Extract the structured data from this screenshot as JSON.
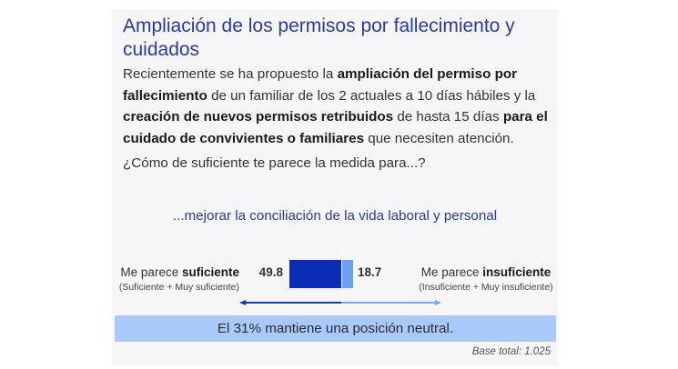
{
  "card": {
    "title": "Ampliación de los permisos por fallecimiento y cuidados",
    "intro": [
      {
        "text": "Recientemente se ha propuesto la ",
        "bold": false
      },
      {
        "text": "ampliación del permiso por fallecimiento",
        "bold": true
      },
      {
        "text": " de un familiar de los 2 actuales a 10 días hábiles y la ",
        "bold": false
      },
      {
        "text": "creación de nuevos permisos retribuidos",
        "bold": true
      },
      {
        "text": " de hasta 15 días ",
        "bold": false
      },
      {
        "text": "para el cuidado de convivientes o familiares",
        "bold": true
      },
      {
        "text": " que necesiten atención.",
        "bold": false
      }
    ],
    "question": "¿Cómo de suficiente te parece la medida para...?",
    "subtitle": "...mejorar la conciliación de la vida laboral y personal",
    "left_label": {
      "prefix": "Me parece ",
      "bold": "suficiente",
      "sub": "(Suficiente + Muy suficiente)"
    },
    "right_label": {
      "prefix": "Me parece ",
      "bold": "insuficiente",
      "sub": "(Insuficiente + Muy insuficiente)"
    },
    "left_value": "49.8",
    "right_value": "18.7",
    "banner": "El 31% mantiene una posición neutral.",
    "base": "Base total:  1.025"
  },
  "colors": {
    "title": "#2a3a9c",
    "bar_sufficient": "#0a2db5",
    "bar_insufficient": "#6ea0f0",
    "banner": "#a9c9fb",
    "card_bg": "#f6f6f8"
  },
  "chart_data": {
    "type": "bar",
    "orientation": "horizontal-diverging",
    "title": "...mejorar la conciliación de la vida laboral y personal",
    "categories": [
      "Me parece suficiente (Suficiente + Muy suficiente)",
      "Me parece insuficiente (Insuficiente + Muy insuficiente)"
    ],
    "values": [
      49.8,
      18.7
    ],
    "series": [
      {
        "name": "Suficiente",
        "value": 49.8,
        "color": "#0a2db5",
        "direction": "left"
      },
      {
        "name": "Insuficiente",
        "value": 18.7,
        "color": "#6ea0f0",
        "direction": "right"
      }
    ],
    "neutral_percent": 31,
    "annotation": "El 31% mantiene una posición neutral.",
    "base_total": "1.025",
    "xlabel": "",
    "ylabel": "",
    "grid": false
  }
}
